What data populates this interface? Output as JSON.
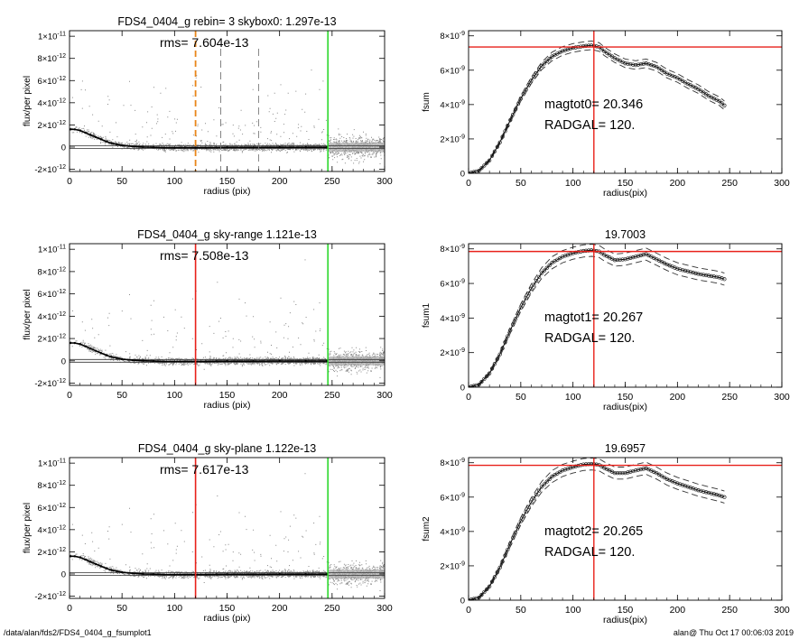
{
  "footer": {
    "path": "/data/alan/fds2/FDS4_0404_g_fsumplot1",
    "stamp": "alan@  Thu Oct 17 00:06:03 2019"
  },
  "colors": {
    "axis": "#000000",
    "scatter": "#888888",
    "profile": "#000000",
    "red_marker": "#e8201a",
    "orange_marker": "#e8861a",
    "green_marker": "#2ed82e",
    "dash_marker": "#777777"
  },
  "chart_data": [
    {
      "id": "left1",
      "type": "scatter",
      "title": "FDS4_0404_g rebin= 3    skybox0:  1.297e-13",
      "annotation": "rms= 7.604e-13",
      "xlabel": "radius (pix)",
      "ylabel": "flux/per pixel",
      "xlim": [
        0,
        300
      ],
      "ylim": [
        -2.2e-12,
        1.05e-11
      ],
      "xticks": [
        0,
        50,
        100,
        150,
        200,
        250,
        300
      ],
      "yticks": [
        {
          "value": -2e-12,
          "mant": "-2×10",
          "exp": "-12"
        },
        {
          "value": 0,
          "mant": "0",
          "exp": ""
        },
        {
          "value": 2e-12,
          "mant": "2×10",
          "exp": "-12"
        },
        {
          "value": 4e-12,
          "mant": "4×10",
          "exp": "-12"
        },
        {
          "value": 6e-12,
          "mant": "6×10",
          "exp": "-12"
        },
        {
          "value": 8e-12,
          "mant": "8×10",
          "exp": "-12"
        },
        {
          "value": 1e-11,
          "mant": "1×10",
          "exp": "-11"
        }
      ],
      "sky_level": 0,
      "profile": {
        "x": [
          1,
          5,
          10,
          15,
          20,
          25,
          30,
          35,
          40,
          45,
          50,
          60,
          70,
          80,
          90,
          100,
          110,
          120,
          130,
          140,
          150,
          175,
          200,
          225,
          245
        ],
        "y": [
          1.6e-12,
          1.6e-12,
          1.5e-12,
          1.3e-12,
          1.1e-12,
          9e-13,
          7e-13,
          5e-13,
          3.5e-13,
          2.5e-13,
          1.5e-13,
          6e-14,
          1e-14,
          -2e-14,
          -5e-14,
          -6e-14,
          -5e-14,
          -6e-14,
          -5e-14,
          -4e-14,
          -3e-14,
          -3e-14,
          -2e-14,
          -2e-14,
          -2e-14
        ]
      },
      "markers": [
        {
          "x": 120,
          "style": "dash-orange"
        },
        {
          "x": 144,
          "style": "dash-gray"
        },
        {
          "x": 180,
          "style": "dash-gray"
        },
        {
          "x": 246,
          "style": "solid-green"
        }
      ]
    },
    {
      "id": "left2",
      "type": "scatter",
      "title": "FDS4_0404_g sky-range  1.121e-13",
      "annotation": "rms= 7.508e-13",
      "xlabel": "radius (pix)",
      "ylabel": "flux/per pixel",
      "xlim": [
        0,
        300
      ],
      "ylim": [
        -2.2e-12,
        1.05e-11
      ],
      "xticks": [
        0,
        50,
        100,
        150,
        200,
        250,
        300
      ],
      "yticks": [
        {
          "value": -2e-12,
          "mant": "-2×10",
          "exp": "-12"
        },
        {
          "value": 0,
          "mant": "0",
          "exp": ""
        },
        {
          "value": 2e-12,
          "mant": "2×10",
          "exp": "-12"
        },
        {
          "value": 4e-12,
          "mant": "4×10",
          "exp": "-12"
        },
        {
          "value": 6e-12,
          "mant": "6×10",
          "exp": "-12"
        },
        {
          "value": 8e-12,
          "mant": "8×10",
          "exp": "-12"
        },
        {
          "value": 1e-11,
          "mant": "1×10",
          "exp": "-11"
        }
      ],
      "sky_level": 0,
      "profile": {
        "x": [
          1,
          5,
          10,
          15,
          20,
          25,
          30,
          35,
          40,
          45,
          50,
          60,
          70,
          80,
          90,
          100,
          110,
          120,
          130,
          140,
          150,
          175,
          200,
          225,
          245
        ],
        "y": [
          1.6e-12,
          1.6e-12,
          1.5e-12,
          1.3e-12,
          1.1e-12,
          9e-13,
          7e-13,
          5e-13,
          3.5e-13,
          2.5e-13,
          1.5e-13,
          6e-14,
          1e-14,
          -2e-14,
          -5e-14,
          -6e-14,
          -5e-14,
          -6e-14,
          -5e-14,
          -4e-14,
          -3e-14,
          -3e-14,
          -2e-14,
          -2e-14,
          -2e-14
        ]
      },
      "markers": [
        {
          "x": 120,
          "style": "solid-red"
        },
        {
          "x": 246,
          "style": "solid-green"
        }
      ]
    },
    {
      "id": "left3",
      "type": "scatter",
      "title": "FDS4_0404_g sky-plane  1.122e-13",
      "annotation": "rms= 7.617e-13",
      "xlabel": "radius (pix)",
      "ylabel": "flux/per pixel",
      "xlim": [
        0,
        300
      ],
      "ylim": [
        -2.2e-12,
        1.05e-11
      ],
      "xticks": [
        0,
        50,
        100,
        150,
        200,
        250,
        300
      ],
      "yticks": [
        {
          "value": -2e-12,
          "mant": "-2×10",
          "exp": "-12"
        },
        {
          "value": 0,
          "mant": "0",
          "exp": ""
        },
        {
          "value": 2e-12,
          "mant": "2×10",
          "exp": "-12"
        },
        {
          "value": 4e-12,
          "mant": "4×10",
          "exp": "-12"
        },
        {
          "value": 6e-12,
          "mant": "6×10",
          "exp": "-12"
        },
        {
          "value": 8e-12,
          "mant": "8×10",
          "exp": "-12"
        },
        {
          "value": 1e-11,
          "mant": "1×10",
          "exp": "-11"
        }
      ],
      "sky_level": 0,
      "profile": {
        "x": [
          1,
          5,
          10,
          15,
          20,
          25,
          30,
          35,
          40,
          45,
          50,
          60,
          70,
          80,
          90,
          100,
          110,
          120,
          130,
          140,
          150,
          175,
          200,
          225,
          245
        ],
        "y": [
          1.6e-12,
          1.6e-12,
          1.5e-12,
          1.3e-12,
          1.1e-12,
          9e-13,
          7e-13,
          5e-13,
          3.5e-13,
          2.5e-13,
          1.5e-13,
          6e-14,
          1e-14,
          -2e-14,
          -5e-14,
          -6e-14,
          -5e-14,
          -6e-14,
          -5e-14,
          -4e-14,
          -3e-14,
          -3e-14,
          -2e-14,
          -2e-14,
          -2e-14
        ]
      },
      "markers": [
        {
          "x": 120,
          "style": "solid-red"
        },
        {
          "x": 246,
          "style": "solid-green"
        }
      ]
    },
    {
      "id": "right1",
      "type": "line",
      "title": "",
      "xlabel": "radius(pix)",
      "ylabel": "fsum",
      "annotations": [
        "magtot0=  20.346",
        "RADGAL=    120."
      ],
      "xlim": [
        0,
        300
      ],
      "ylim": [
        0,
        8.3e-09
      ],
      "xticks": [
        0,
        50,
        100,
        150,
        200,
        250,
        300
      ],
      "yticks": [
        {
          "value": 0,
          "mant": "0",
          "exp": ""
        },
        {
          "value": 2e-09,
          "mant": "2×10",
          "exp": "-9"
        },
        {
          "value": 4e-09,
          "mant": "4×10",
          "exp": "-9"
        },
        {
          "value": 6e-09,
          "mant": "6×10",
          "exp": "-9"
        },
        {
          "value": 8e-09,
          "mant": "8×10",
          "exp": "-9"
        }
      ],
      "hline": 7.35e-09,
      "vline": 120,
      "curve": {
        "x": [
          0,
          10,
          20,
          30,
          40,
          50,
          60,
          70,
          80,
          90,
          100,
          110,
          118,
          125,
          130,
          140,
          150,
          160,
          170,
          180,
          190,
          200,
          210,
          220,
          230,
          240,
          245
        ],
        "y": [
          0,
          1.5e-10,
          7.5e-10,
          1.8e-09,
          3.1e-09,
          4.35e-09,
          5.4e-09,
          6.25e-09,
          6.8e-09,
          7.12e-09,
          7.3e-09,
          7.4e-09,
          7.45e-09,
          7.35e-09,
          7.1e-09,
          6.7e-09,
          6.4e-09,
          6.3e-09,
          6.4e-09,
          6.2e-09,
          5.8e-09,
          5.55e-09,
          5.2e-09,
          4.9e-09,
          4.5e-09,
          4.2e-09,
          3.95e-09
        ]
      },
      "envelope_offset": 2.5e-10
    },
    {
      "id": "right2",
      "type": "line",
      "title": "19.7003",
      "xlabel": "radius(pix)",
      "ylabel": "fsum1",
      "annotations": [
        "magtot1=  20.267",
        "RADGAL=    120."
      ],
      "xlim": [
        0,
        300
      ],
      "ylim": [
        0,
        8.3e-09
      ],
      "xticks": [
        0,
        50,
        100,
        150,
        200,
        250,
        300
      ],
      "yticks": [
        {
          "value": 0,
          "mant": "0",
          "exp": ""
        },
        {
          "value": 2e-09,
          "mant": "2×10",
          "exp": "-9"
        },
        {
          "value": 4e-09,
          "mant": "4×10",
          "exp": "-9"
        },
        {
          "value": 6e-09,
          "mant": "6×10",
          "exp": "-9"
        },
        {
          "value": 8e-09,
          "mant": "8×10",
          "exp": "-9"
        }
      ],
      "hline": 7.85e-09,
      "vline": 120,
      "curve": {
        "x": [
          0,
          10,
          20,
          30,
          40,
          50,
          60,
          70,
          80,
          90,
          100,
          110,
          118,
          125,
          130,
          140,
          150,
          160,
          170,
          180,
          190,
          200,
          210,
          220,
          230,
          240,
          245
        ],
        "y": [
          0,
          1.5e-10,
          8e-10,
          1.9e-09,
          3.3e-09,
          4.6e-09,
          5.7e-09,
          6.6e-09,
          7.2e-09,
          7.55e-09,
          7.75e-09,
          7.88e-09,
          7.92e-09,
          7.85e-09,
          7.65e-09,
          7.35e-09,
          7.4e-09,
          7.55e-09,
          7.7e-09,
          7.4e-09,
          7.1e-09,
          6.85e-09,
          6.7e-09,
          6.55e-09,
          6.45e-09,
          6.35e-09,
          6.25e-09
        ]
      },
      "envelope_offset": 3.5e-10
    },
    {
      "id": "right3",
      "type": "line",
      "title": "19.6957",
      "xlabel": "radius(pix)",
      "ylabel": "fsum2",
      "annotations": [
        "magtot2=  20.265",
        "RADGAL=    120."
      ],
      "xlim": [
        0,
        300
      ],
      "ylim": [
        0,
        8.3e-09
      ],
      "xticks": [
        0,
        50,
        100,
        150,
        200,
        250,
        300
      ],
      "yticks": [
        {
          "value": 0,
          "mant": "0",
          "exp": ""
        },
        {
          "value": 2e-09,
          "mant": "2×10",
          "exp": "-9"
        },
        {
          "value": 4e-09,
          "mant": "4×10",
          "exp": "-9"
        },
        {
          "value": 6e-09,
          "mant": "6×10",
          "exp": "-9"
        },
        {
          "value": 8e-09,
          "mant": "8×10",
          "exp": "-9"
        }
      ],
      "hline": 7.85e-09,
      "vline": 120,
      "curve": {
        "x": [
          0,
          10,
          20,
          30,
          40,
          50,
          60,
          70,
          80,
          90,
          100,
          110,
          118,
          125,
          130,
          140,
          150,
          160,
          170,
          180,
          190,
          200,
          210,
          220,
          230,
          240,
          245
        ],
        "y": [
          0,
          1.5e-10,
          8e-10,
          1.9e-09,
          3.3e-09,
          4.6e-09,
          5.7e-09,
          6.6e-09,
          7.2e-09,
          7.55e-09,
          7.75e-09,
          7.9e-09,
          7.93e-09,
          7.88e-09,
          7.7e-09,
          7.4e-09,
          7.4e-09,
          7.55e-09,
          7.68e-09,
          7.4e-09,
          7.05e-09,
          6.8e-09,
          6.6e-09,
          6.4e-09,
          6.25e-09,
          6.1e-09,
          6e-09
        ]
      },
      "envelope_offset": 3.5e-10
    }
  ]
}
